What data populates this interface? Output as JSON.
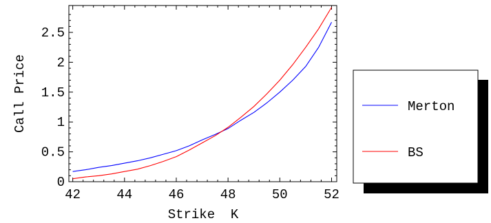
{
  "chart_data": {
    "type": "line",
    "title": "",
    "xlabel": "Strike  K",
    "ylabel": "Call Price",
    "xlim": [
      41.85,
      52.2
    ],
    "ylim": [
      0,
      2.95
    ],
    "x_ticks": [
      42,
      44,
      46,
      48,
      50,
      52
    ],
    "x_tick_labels": [
      "42",
      "44",
      "46",
      "48",
      "50",
      "52"
    ],
    "y_ticks": [
      0,
      0.5,
      1,
      1.5,
      2,
      2.5
    ],
    "y_tick_labels": [
      "0",
      "0.5",
      "1",
      "1.5",
      "2",
      "2.5"
    ],
    "grid": false,
    "legend_position": "right",
    "series": [
      {
        "name": "Merton",
        "color": "#0000ff",
        "x": [
          42,
          42.5,
          43,
          43.5,
          44,
          44.5,
          45,
          45.5,
          46,
          46.5,
          47,
          47.5,
          48,
          48.5,
          49,
          49.5,
          50,
          50.5,
          51,
          51.5,
          52
        ],
        "y": [
          0.17,
          0.2,
          0.24,
          0.27,
          0.31,
          0.35,
          0.4,
          0.46,
          0.52,
          0.6,
          0.7,
          0.79,
          0.89,
          1.03,
          1.16,
          1.32,
          1.5,
          1.7,
          1.93,
          2.25,
          2.67
        ]
      },
      {
        "name": "BS",
        "color": "#ff0000",
        "x": [
          42,
          42.5,
          43,
          43.5,
          44,
          44.5,
          45,
          45.5,
          46,
          46.5,
          47,
          47.5,
          48,
          48.5,
          49,
          49.5,
          50,
          50.5,
          51,
          51.5,
          52
        ],
        "y": [
          0.05,
          0.08,
          0.1,
          0.13,
          0.17,
          0.21,
          0.27,
          0.34,
          0.42,
          0.53,
          0.65,
          0.77,
          0.91,
          1.08,
          1.26,
          1.47,
          1.7,
          1.96,
          2.25,
          2.56,
          2.92
        ]
      }
    ]
  }
}
